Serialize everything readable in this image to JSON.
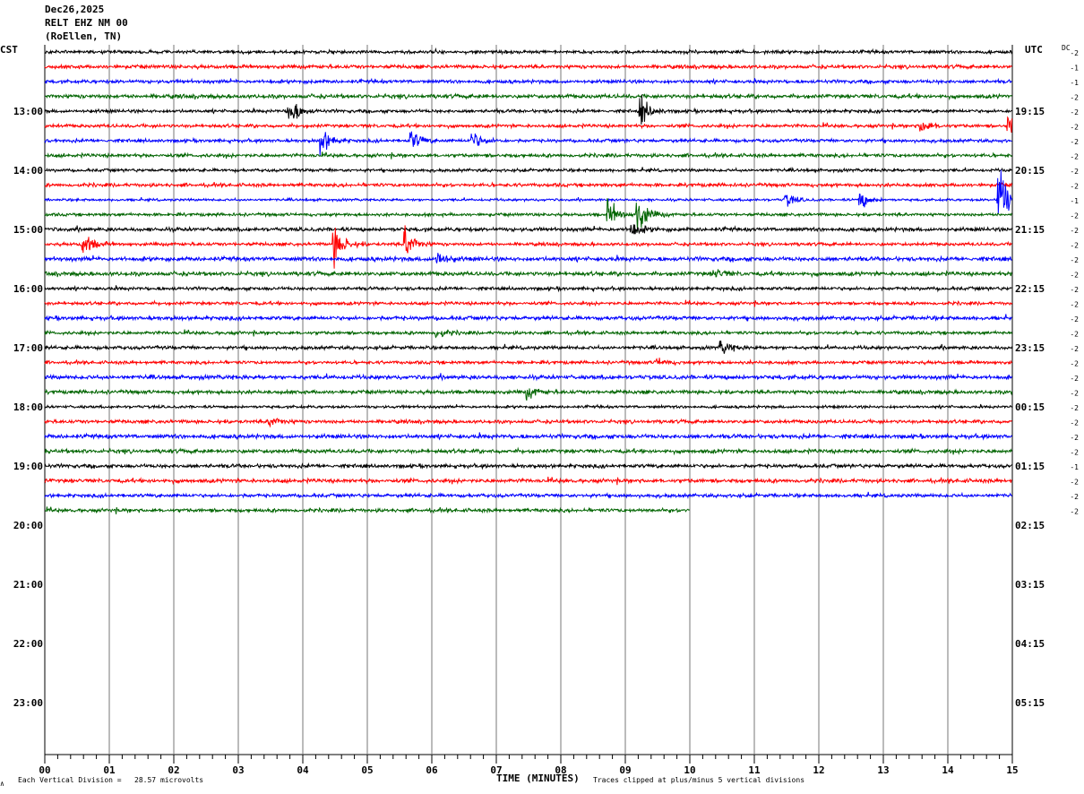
{
  "header": {
    "date": "Dec26,2025",
    "station": "RELT EHZ NM 00",
    "location": "(RoEllen, TN)"
  },
  "left_tz": "CST",
  "right_tz": "UTC",
  "dc_label": "DC",
  "footer": {
    "x_title": "TIME (MINUTES)",
    "scale_note": "Each Vertical Division =   28.57 microvolts",
    "clip_note": "Traces clipped at plus/minus 5 vertical divisions",
    "corner_mark": "∧"
  },
  "chart_data": {
    "type": "line",
    "title": "RELT EHZ NM 00",
    "xlabel": "TIME (MINUTES)",
    "xlim": [
      0,
      15
    ],
    "x_ticks": [
      "00",
      "01",
      "02",
      "03",
      "04",
      "05",
      "06",
      "07",
      "08",
      "09",
      "10",
      "11",
      "12",
      "13",
      "14",
      "15"
    ],
    "trace_colors": [
      "#000000",
      "#ff0000",
      "#0000ff",
      "#006400"
    ],
    "rows_total": 48,
    "rows_recorded": 32,
    "last_row_end_minute": 10,
    "left_hour_labels": [
      "13:00",
      "14:00",
      "15:00",
      "16:00",
      "17:00",
      "18:00",
      "19:00",
      "20:00",
      "21:00",
      "22:00",
      "23:00"
    ],
    "right_hour_labels": [
      "19:15",
      "20:15",
      "21:15",
      "22:15",
      "23:15",
      "00:15",
      "01:15",
      "02:15",
      "03:15",
      "04:15",
      "05:15"
    ],
    "dc_offsets": [
      "-2",
      "-1",
      "-1",
      "-2",
      "-2",
      "-2",
      "-2",
      "-2",
      "-2",
      "-2",
      "-1",
      "-2",
      "-2",
      "-2",
      "-2",
      "-2",
      "-2",
      "-2",
      "-2",
      "-2",
      "-2",
      "-2",
      "-2",
      "-2",
      "-2",
      "-2",
      "-2",
      "-2",
      "-1",
      "-2",
      "-2",
      "-2"
    ],
    "events": [
      {
        "row": 4,
        "minute": 3.8,
        "amplitude": 2.0
      },
      {
        "row": 4,
        "minute": 9.25,
        "amplitude": 1.6
      },
      {
        "row": 5,
        "minute": 13.6,
        "amplitude": 1.0
      },
      {
        "row": 5,
        "minute": 14.95,
        "amplitude": 1.2
      },
      {
        "row": 6,
        "minute": 4.3,
        "amplitude": 1.7
      },
      {
        "row": 6,
        "minute": 5.7,
        "amplitude": 1.3
      },
      {
        "row": 6,
        "minute": 6.65,
        "amplitude": 1.1
      },
      {
        "row": 10,
        "minute": 11.5,
        "amplitude": 0.8
      },
      {
        "row": 10,
        "minute": 12.65,
        "amplitude": 1.2
      },
      {
        "row": 10,
        "minute": 14.8,
        "amplitude": 5.0
      },
      {
        "row": 11,
        "minute": 8.75,
        "amplitude": 1.5
      },
      {
        "row": 11,
        "minute": 9.2,
        "amplitude": 2.5
      },
      {
        "row": 12,
        "minute": 9.1,
        "amplitude": 1.0
      },
      {
        "row": 13,
        "minute": 0.6,
        "amplitude": 1.6
      },
      {
        "row": 13,
        "minute": 4.5,
        "amplitude": 2.5
      },
      {
        "row": 13,
        "minute": 5.6,
        "amplitude": 2.0
      },
      {
        "row": 14,
        "minute": 6.1,
        "amplitude": 1.0
      },
      {
        "row": 15,
        "minute": 10.4,
        "amplitude": 0.6
      },
      {
        "row": 19,
        "minute": 6.1,
        "amplitude": 0.6
      },
      {
        "row": 20,
        "minute": 10.5,
        "amplitude": 0.8
      },
      {
        "row": 21,
        "minute": 9.5,
        "amplitude": 0.5
      },
      {
        "row": 23,
        "minute": 7.5,
        "amplitude": 0.7
      },
      {
        "row": 25,
        "minute": 3.5,
        "amplitude": 0.7
      }
    ]
  }
}
